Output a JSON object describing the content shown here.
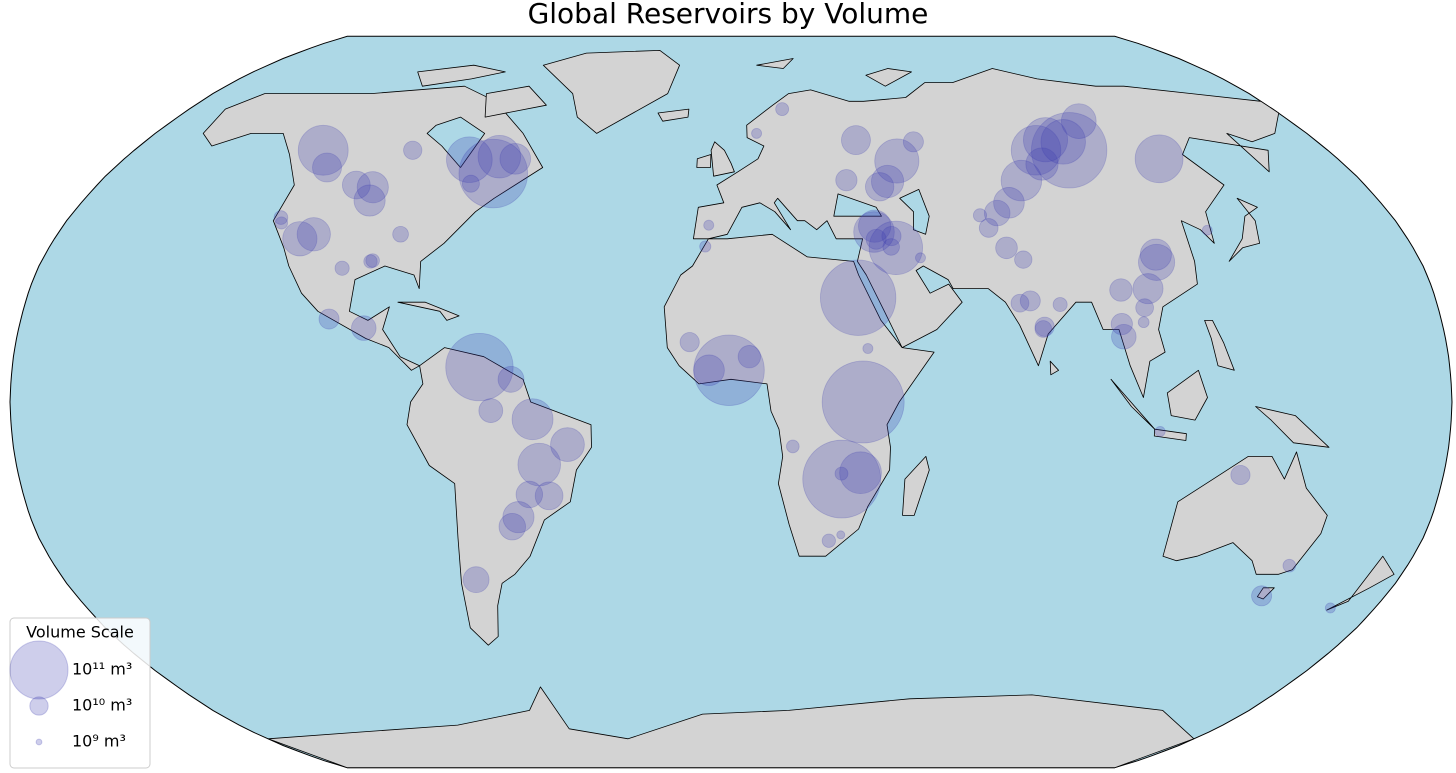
{
  "map": {
    "title": "Global Reservoirs by Volume",
    "marker_color": "#3c3cb0",
    "marker_alpha": 0.25,
    "ocean_color": "#add8e6",
    "land_color": "#d3d3d3",
    "legend": {
      "title": "Volume Scale",
      "corner": "lower left",
      "items": [
        {
          "value": 100000000000,
          "label": "10¹¹ m³"
        },
        {
          "value": 10000000000,
          "label": "10¹⁰ m³"
        },
        {
          "value": 1000000000,
          "label": "10⁹ m³"
        }
      ]
    },
    "reservoirs": [
      {
        "lon": -0.5,
        "lat": 7,
        "volume": 148000000000.0
      },
      {
        "lon": 28,
        "lat": -17,
        "volume": 180000000000.0
      },
      {
        "lon": 33,
        "lat": 0,
        "volume": 200000000000.0
      },
      {
        "lon": 32.5,
        "lat": 23,
        "volume": 169000000000.0
      },
      {
        "lon": 102,
        "lat": 56,
        "volume": 169000000000.0
      },
      {
        "lon": -63,
        "lat": 7.7,
        "volume": 135000000000.0
      },
      {
        "lon": -68.7,
        "lat": 50.6,
        "volume": 140000000000.0
      },
      {
        "lon": 92,
        "lat": 56,
        "volume": 73000000000.0
      },
      {
        "lon": 127,
        "lat": 54,
        "volume": 68000000000.0
      },
      {
        "lon": 49,
        "lat": 53.5,
        "volume": 58000000000.0
      },
      {
        "lon": 83,
        "lat": 49,
        "volume": 49000000000.0
      },
      {
        "lon": -69,
        "lat": 54.5,
        "volume": 54000000000.0
      },
      {
        "lon": -77.5,
        "lat": 53.8,
        "volume": 62000000000.0
      },
      {
        "lon": -123,
        "lat": 56,
        "volume": 74000000000.0
      },
      {
        "lon": 111,
        "lat": 30.8,
        "volume": 39000000000.0
      },
      {
        "lon": -49.6,
        "lat": -3.8,
        "volume": 50000000000.0
      },
      {
        "lon": -41,
        "lat": -9.4,
        "volume": 34000000000.0
      },
      {
        "lon": -48.3,
        "lat": -13.8,
        "volume": 54000000000.0
      },
      {
        "lon": 32.7,
        "lat": -15.6,
        "volume": 52000000000.0
      },
      {
        "lon": 4.6,
        "lat": 10,
        "volume": 15000000000.0
      },
      {
        "lon": 38.3,
        "lat": 37.5,
        "volume": 49000000000.0
      },
      {
        "lon": 43.5,
        "lat": 34,
        "volume": 85000000000.0
      },
      {
        "lon": 112,
        "lat": 63,
        "volume": 36000000000.0
      },
      {
        "lon": 102,
        "lat": 58,
        "volume": 59000000000.0
      },
      {
        "lon": 97,
        "lat": 58.5,
        "volume": 58000000000.0
      },
      {
        "lon": 91.4,
        "lat": 52.8,
        "volume": 31000000000.0
      },
      {
        "lon": 77,
        "lat": 44,
        "volume": 28000000000.0
      },
      {
        "lon": -114.7,
        "lat": 36,
        "volume": 35000000000.0
      },
      {
        "lon": -111.5,
        "lat": 37,
        "volume": 33000000000.0
      },
      {
        "lon": -100.4,
        "lat": 44.5,
        "volume": 29000000000.0
      },
      {
        "lon": -106.4,
        "lat": 48,
        "volume": 23000000000.0
      },
      {
        "lon": -101.4,
        "lat": 47.5,
        "volume": 29000000000.0
      },
      {
        "lon": -118,
        "lat": 52,
        "volume": 25000000000.0
      },
      {
        "lon": -64,
        "lat": 54,
        "volume": 28000000000.0
      },
      {
        "lon": -54.6,
        "lat": -25.4,
        "volume": 29000000000.0
      },
      {
        "lon": -46.3,
        "lat": -20.7,
        "volume": 23000000000.0
      },
      {
        "lon": -51.3,
        "lat": -20.4,
        "volume": 21000000000.0
      },
      {
        "lon": -56.5,
        "lat": -27.5,
        "volume": 21000000000.0
      },
      {
        "lon": -68.8,
        "lat": -39.2,
        "volume": 20000000000.0
      },
      {
        "lon": -55,
        "lat": 5,
        "volume": 20000000000.0
      },
      {
        "lon": -60,
        "lat": -1.9,
        "volume": 17000000000.0
      },
      {
        "lon": -5.5,
        "lat": 7,
        "volume": 28000000000.0
      },
      {
        "lon": 146,
        "lat": -42.8,
        "volume": 12000000000.0
      },
      {
        "lon": 128.7,
        "lat": -16.1,
        "volume": 11000000000.0
      },
      {
        "lon": 72.7,
        "lat": 34,
        "volume": 14000000000.0
      },
      {
        "lon": 76.4,
        "lat": 31.4,
        "volume": 9000000000.0
      },
      {
        "lon": 76.4,
        "lat": 22.3,
        "volume": 12000000000.0
      },
      {
        "lon": 69.3,
        "lat": 38.4,
        "volume": 10500000000.0
      },
      {
        "lon": 72.8,
        "lat": 41.7,
        "volume": 19500000000.0
      },
      {
        "lon": 99,
        "lat": 14.4,
        "volume": 18000000000.0
      },
      {
        "lon": 98.9,
        "lat": 17.2,
        "volume": 13500000000.0
      },
      {
        "lon": 111.5,
        "lat": 32.5,
        "volume": 29000000000.0
      },
      {
        "lon": 107,
        "lat": 25,
        "volume": 27000000000.0
      },
      {
        "lon": 100,
        "lat": 24.7,
        "volume": 15000000000.0
      },
      {
        "lon": 33,
        "lat": 49.1,
        "volume": 13500000000.0
      },
      {
        "lon": 38.5,
        "lat": 58.4,
        "volume": 25000000000.0
      },
      {
        "lon": 42.1,
        "lat": 47.6,
        "volume": 24000000000.0
      },
      {
        "lon": 44.7,
        "lat": 48.8,
        "volume": 31000000000.0
      },
      {
        "lon": 56,
        "lat": 58,
        "volume": 12000000000.0
      },
      {
        "lon": 25.5,
        "lat": -30.6,
        "volume": 5300000000.0
      },
      {
        "lon": 27.9,
        "lat": -15.8,
        "volume": 5000000000.0
      },
      {
        "lon": 34.4,
        "lat": 11.8,
        "volume": 3000000000.0
      },
      {
        "lon": -10.4,
        "lat": 13.2,
        "volume": 11000000000.0
      },
      {
        "lon": 17,
        "lat": 66,
        "volume": 5000000000.0
      },
      {
        "lon": 8,
        "lat": 60,
        "volume": 3000000000.0
      },
      {
        "lon": -6,
        "lat": 39,
        "volume": 3000000000.0
      },
      {
        "lon": -92.8,
        "lat": 16.3,
        "volume": 18000000000.0
      },
      {
        "lon": -101.9,
        "lat": 18.3,
        "volume": 12000000000.0
      },
      {
        "lon": -101,
        "lat": 29.5,
        "volume": 6000000000.0
      },
      {
        "lon": -121.5,
        "lat": 39.5,
        "volume": 4400000000.0
      },
      {
        "lon": -122.4,
        "lat": 40.7,
        "volume": 5600000000.0
      },
      {
        "lon": -88.3,
        "lat": 37,
        "volume": 7400000000.0
      },
      {
        "lon": -93.6,
        "lat": 31.2,
        "volume": 5500000000.0
      },
      {
        "lon": -94.1,
        "lat": 31,
        "volume": 5300000000.0
      },
      {
        "lon": -74,
        "lat": 48.3,
        "volume": 8600000000.0
      },
      {
        "lon": -96,
        "lat": 56,
        "volume": 10000000000.0
      },
      {
        "lon": 104.5,
        "lat": 17.6,
        "volume": 3500000000.0
      },
      {
        "lon": 105.3,
        "lat": 20.8,
        "volume": 9400000000.0
      },
      {
        "lon": 127.8,
        "lat": 37.9,
        "volume": 2900000000.0
      },
      {
        "lon": 107.4,
        "lat": -6.5,
        "volume": 3000000000.0
      },
      {
        "lon": 148.6,
        "lat": -36.1,
        "volume": 4800000000.0
      },
      {
        "lon": 167.5,
        "lat": -45.5,
        "volume": 3000000000.0
      },
      {
        "lon": 49.6,
        "lat": 31.8,
        "volume": 3000000000.0
      },
      {
        "lon": 83.9,
        "lat": 21.5,
        "volume": 5900000000.0
      },
      {
        "lon": 73.7,
        "lat": 21.8,
        "volume": 9500000000.0
      },
      {
        "lon": 79.3,
        "lat": 16.6,
        "volume": 11000000000.0
      },
      {
        "lon": 78.9,
        "lat": 16.1,
        "volume": 8300000000.0
      },
      {
        "lon": 15.5,
        "lat": -9.8,
        "volume": 4800000000.0
      },
      {
        "lon": 28.5,
        "lat": -29.3,
        "volume": 1950000000.0
      },
      {
        "lon": -6.8,
        "lat": 34.3,
        "volume": 3700000000.0
      },
      {
        "lon": 38.6,
        "lat": 35.9,
        "volume": 11900000000.0
      },
      {
        "lon": 42.8,
        "lat": 36.6,
        "volume": 11000000000.0
      },
      {
        "lon": 42.3,
        "lat": 34.2,
        "volume": 8200000000.0
      },
      {
        "lon": 38.7,
        "lat": 38.8,
        "volume": 31000000000.0
      },
      {
        "lon": 67.9,
        "lat": 41.2,
        "volume": 5200000000.0
      }
    ]
  }
}
